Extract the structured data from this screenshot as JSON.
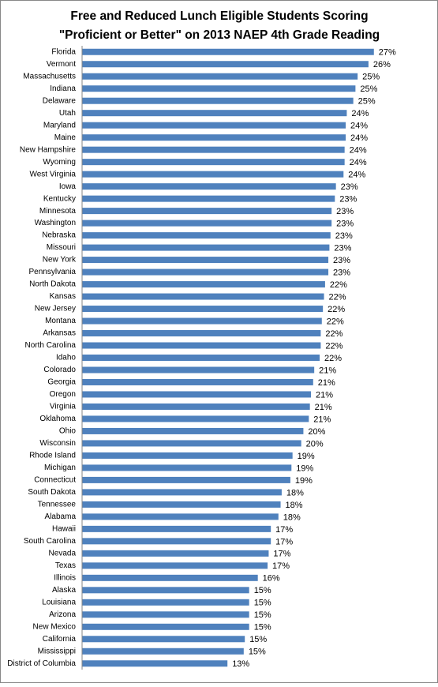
{
  "chart_data": {
    "type": "hbar",
    "title": [
      "Free and Reduced Lunch Eligible Students Scoring",
      "\"Proficient or Better\" on 2013 NAEP 4th Grade Reading"
    ],
    "categories": [
      "Florida",
      "Vermont",
      "Massachusetts",
      "Indiana",
      "Delaware",
      "Utah",
      "Maryland",
      "Maine",
      "New Hampshire",
      "Wyoming",
      "West Virginia",
      "Iowa",
      "Kentucky",
      "Minnesota",
      "Washington",
      "Nebraska",
      "Missouri",
      "New York",
      "Pennsylvania",
      "North Dakota",
      "Kansas",
      "New Jersey",
      "Montana",
      "Arkansas",
      "North Carolina",
      "Idaho",
      "Colorado",
      "Georgia",
      "Oregon",
      "Virginia",
      "Oklahoma",
      "Ohio",
      "Wisconsin",
      "Rhode Island",
      "Michigan",
      "Connecticut",
      "South Dakota",
      "Tennessee",
      "Alabama",
      "Hawaii",
      "South Carolina",
      "Nevada",
      "Texas",
      "Illinois",
      "Alaska",
      "Louisiana",
      "Arizona",
      "New Mexico",
      "California",
      "Mississippi",
      "District of Columbia"
    ],
    "values": [
      26.9,
      26.4,
      25.4,
      25.2,
      25.0,
      24.4,
      24.3,
      24.3,
      24.2,
      24.2,
      24.1,
      23.4,
      23.3,
      23.0,
      23.0,
      22.9,
      22.8,
      22.7,
      22.7,
      22.4,
      22.3,
      22.2,
      22.1,
      22.0,
      22.0,
      21.9,
      21.4,
      21.3,
      21.1,
      21.0,
      20.9,
      20.4,
      20.2,
      19.4,
      19.3,
      19.2,
      18.4,
      18.3,
      18.1,
      17.4,
      17.4,
      17.2,
      17.1,
      16.2,
      15.4,
      15.4,
      15.4,
      15.4,
      15.0,
      14.9,
      13.4
    ],
    "value_labels": [
      "27%",
      "26%",
      "25%",
      "25%",
      "25%",
      "24%",
      "24%",
      "24%",
      "24%",
      "24%",
      "24%",
      "23%",
      "23%",
      "23%",
      "23%",
      "23%",
      "23%",
      "23%",
      "23%",
      "22%",
      "22%",
      "22%",
      "22%",
      "22%",
      "22%",
      "22%",
      "21%",
      "21%",
      "21%",
      "21%",
      "21%",
      "20%",
      "20%",
      "19%",
      "19%",
      "19%",
      "18%",
      "18%",
      "18%",
      "17%",
      "17%",
      "17%",
      "17%",
      "16%",
      "15%",
      "15%",
      "15%",
      "15%",
      "15%",
      "15%",
      "13%"
    ],
    "color": "#4f81bd",
    "xlim": [
      0,
      32.3
    ]
  }
}
